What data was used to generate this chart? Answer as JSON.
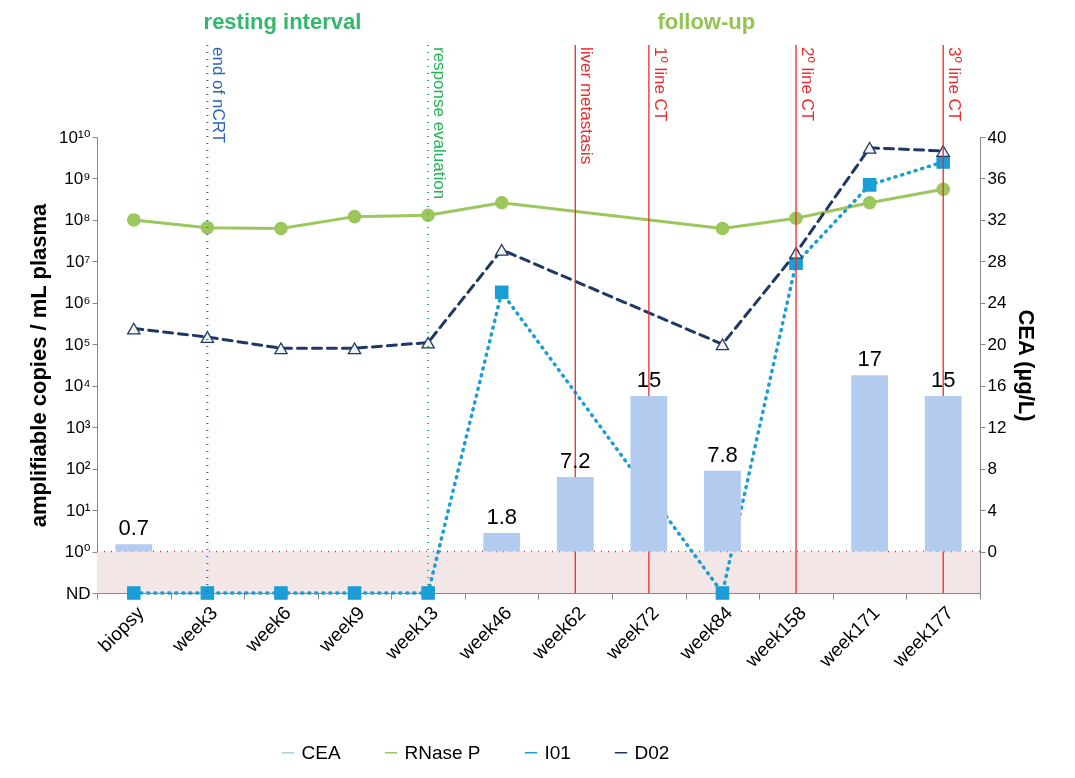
{
  "chart_data": {
    "type": "line",
    "categories": [
      "biopsy",
      "week3",
      "week6",
      "week9",
      "week13",
      "week46",
      "week62",
      "week72",
      "week84",
      "week158",
      "week171",
      "week177"
    ],
    "ylabel": "amplifiable copies / mL plasma",
    "y2label": "CEA (µg/L)",
    "annotations": [
      "resting interval",
      "follow-up"
    ],
    "log": "y",
    "ylim": [
      0.1,
      10000000000.0
    ],
    "yticks": [
      {
        "value": 0.1,
        "label": "ND"
      },
      {
        "value": 1,
        "label": "10⁰"
      },
      {
        "value": 10,
        "label": "10¹"
      },
      {
        "value": 100,
        "label": "10²"
      },
      {
        "value": 1000,
        "label": "10³"
      },
      {
        "value": 10000,
        "label": "10⁴"
      },
      {
        "value": 100000,
        "label": "10⁵"
      },
      {
        "value": 1000000,
        "label": "10⁶"
      },
      {
        "value": 10000000,
        "label": "10⁷"
      },
      {
        "value": 100000000,
        "label": "10⁸"
      },
      {
        "value": 1000000000,
        "label": "10⁹"
      },
      {
        "value": 10000000000,
        "label": "10¹⁰"
      }
    ],
    "y2lim": [
      -4,
      40
    ],
    "y2ticks": [
      0,
      4,
      8,
      12,
      16,
      20,
      24,
      28,
      32,
      36,
      40
    ],
    "legend": "bottom",
    "series": [
      {
        "name": "CEA",
        "type": "bar",
        "axis": "y2",
        "color": "#b3cbee",
        "data_labels": true,
        "values": [
          0.7,
          null,
          null,
          null,
          null,
          1.8,
          7.2,
          15,
          7.8,
          null,
          17,
          15
        ]
      },
      {
        "name": "RNase P",
        "color": "#9cc65e",
        "marker": "circle",
        "line_style": "solid",
        "values": [
          100000000.0,
          65000000.0,
          62000000.0,
          120000000.0,
          130000000.0,
          260000000.0,
          null,
          null,
          62000000.0,
          110000000.0,
          260000000.0,
          550000000.0
        ]
      },
      {
        "name": "I01",
        "color": "#1b9dd6",
        "marker": "square",
        "line_style": "dotted",
        "values": [
          0.1,
          0.1,
          0.1,
          0.1,
          0.1,
          1800000.0,
          null,
          null,
          0.1,
          9000000.0,
          700000000.0,
          2500000000.0
        ]
      },
      {
        "name": "D02",
        "color": "#1f3864",
        "marker": "triangle",
        "line_style": "dashed",
        "values": [
          240000.0,
          150000.0,
          80000.0,
          80000.0,
          110000.0,
          19000000.0,
          null,
          null,
          100000.0,
          16000000.0,
          5500000000.0,
          4600000000.0
        ]
      }
    ],
    "ref_lines": [
      {
        "axis": "y",
        "value": 1,
        "color": "#e03030",
        "line_style": "dotted"
      },
      {
        "axis": "x",
        "value": "week3",
        "label": "end of nCRT",
        "color": "#2a63b8",
        "line_style": "dotted"
      },
      {
        "axis": "x",
        "value": "week13",
        "label": "response evaluation",
        "color": "#22b455",
        "line_style": "dotted"
      },
      {
        "axis": "x",
        "value": "week62",
        "label": "liver metastasis",
        "color": "#ee2a2a",
        "line_style": "solid"
      },
      {
        "axis": "x",
        "value": "week72",
        "label": "1º line CT",
        "color": "#ee2a2a",
        "line_style": "solid"
      },
      {
        "axis": "x",
        "value": "week158",
        "label": "2º line CT",
        "color": "#ee2a2a",
        "line_style": "solid"
      },
      {
        "axis": "x",
        "value": "week177",
        "label": "3º line CT",
        "color": "#ee2a2a",
        "line_style": "solid"
      }
    ],
    "bands": [
      {
        "axis": "y",
        "from": 0.1,
        "to": 1,
        "color": "#f2e6e6"
      }
    ]
  }
}
